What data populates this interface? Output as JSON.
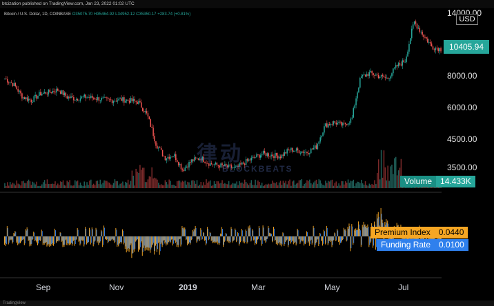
{
  "header": {
    "published_line": "btcization published on TradingView.com, Jan 23, 2022 01:02 UTC"
  },
  "legend": {
    "symbol": "Bitcoin / U.S. Dollar, 1D, COINBASE",
    "o": "O35075.70",
    "h": "H35464.92",
    "l": "L34952.12",
    "c": "C35350.17",
    "chg": "+283.74 (+0.81%)"
  },
  "price_axis": {
    "currency": "USD",
    "top_partial": "14000.00",
    "last_price": "10405.94",
    "ticks": [
      "8000.00",
      "6000.00",
      "4500.00",
      "3500.00"
    ]
  },
  "time_axis": {
    "labels": [
      "Sep",
      "Nov",
      "2019",
      "Mar",
      "May",
      "Jul"
    ]
  },
  "volume": {
    "label": "Volume",
    "value": "14.433K"
  },
  "premium_index": {
    "label": "Premium Index",
    "value": "0.0440"
  },
  "funding_rate": {
    "label": "Funding Rate",
    "value": "0.0100"
  },
  "watermark": {
    "text": "律动",
    "sub": "BLOCKBEATS"
  },
  "footer": {
    "text": "TradingView"
  },
  "colors": {
    "up": "#26a69a",
    "down": "#ef5350",
    "premium": "#f5a623",
    "funding": "#2f80ed",
    "volume_down": "#7a2a2a",
    "volume_up": "#1f5f59"
  },
  "chart_data": {
    "type": "candlestick",
    "x_labels": [
      "Sep",
      "Nov",
      "2019",
      "Mar",
      "May",
      "Jul"
    ],
    "y_ticks": [
      3500,
      4500,
      6000,
      8000,
      10405.94,
      14000
    ],
    "price_close_path": [
      7800,
      7400,
      6600,
      6400,
      6800,
      6900,
      7050,
      6600,
      6500,
      6600,
      6550,
      6450,
      6400,
      6450,
      6400,
      6300,
      5600,
      4300,
      3800,
      3900,
      3400,
      3700,
      3800,
      3600,
      3550,
      3500,
      3450,
      3650,
      3800,
      3950,
      3900,
      3850,
      4100,
      4050,
      4000,
      4200,
      5100,
      5250,
      5100,
      5400,
      7900,
      8200,
      8000,
      7800,
      8700,
      9200,
      12800,
      11500,
      10400,
      10200
    ]
  }
}
